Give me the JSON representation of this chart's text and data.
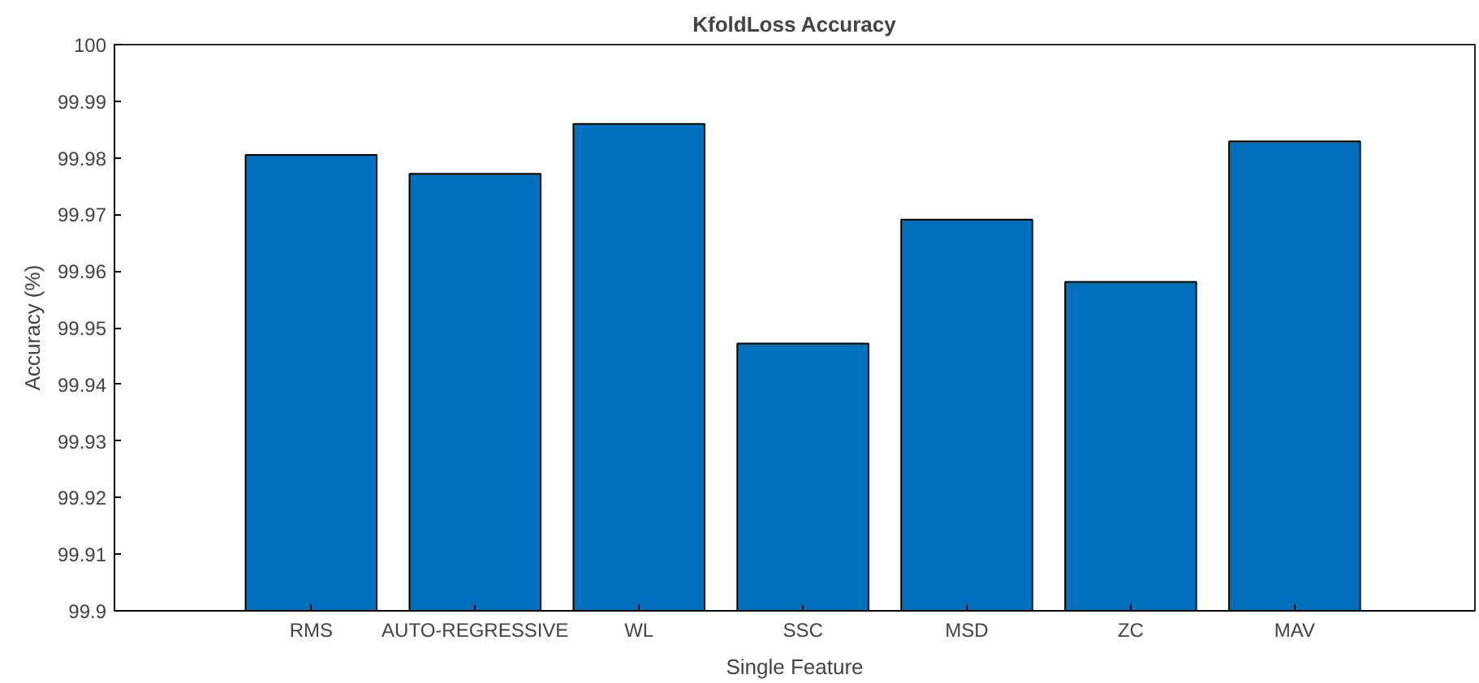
{
  "chart_data": {
    "type": "bar",
    "title": "KfoldLoss Accuracy",
    "xlabel": "Single Feature",
    "ylabel": "Accuracy (%)",
    "categories": [
      "RMS",
      "AUTO-REGRESSIVE",
      "WL",
      "SSC",
      "MSD",
      "ZC",
      "MAV"
    ],
    "values": [
      99.9805,
      99.9772,
      99.986,
      99.9472,
      99.9691,
      99.9581,
      99.9829
    ],
    "color": "#0072bd",
    "ylim": [
      99.9,
      100
    ],
    "yticks": [
      99.9,
      99.91,
      99.92,
      99.93,
      99.94,
      99.95,
      99.96,
      99.97,
      99.98,
      99.99,
      100
    ],
    "grid": false
  }
}
